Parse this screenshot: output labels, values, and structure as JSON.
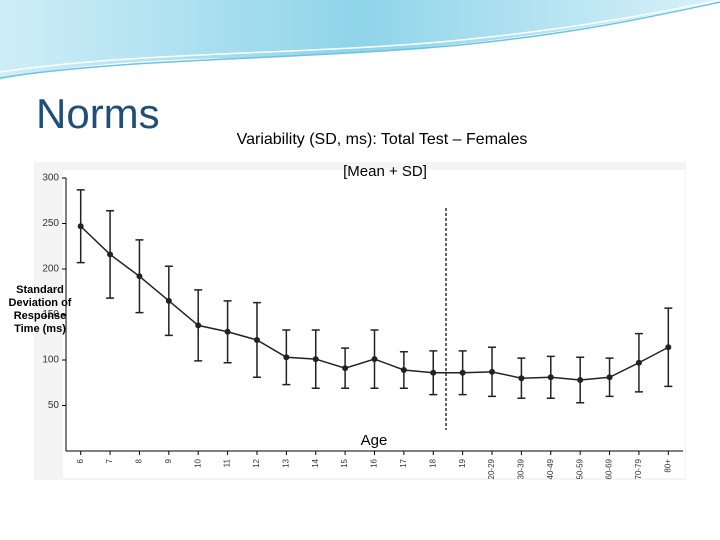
{
  "slide": {
    "title": "Norms"
  },
  "chart_data": {
    "type": "errorbar",
    "title": "Variability (SD, ms): Total Test – Females",
    "subtitle": "[Mean + SD]",
    "x_label": "Age",
    "y_label": "Standard Deviation of Response Time (ms)",
    "categories": [
      "6",
      "7",
      "8",
      "9",
      "10",
      "11",
      "12",
      "13",
      "14",
      "15",
      "16",
      "17",
      "18",
      "19",
      "20-29",
      "30-39",
      "40-49",
      "50-59",
      "60-69",
      "70-79",
      "80+"
    ],
    "series": [
      {
        "color": "#222222",
        "values": [
          247,
          216,
          192,
          165,
          138,
          131,
          122,
          103,
          101,
          91,
          101,
          89,
          86,
          86,
          87,
          80,
          81,
          78,
          81,
          97,
          114
        ],
        "errors": [
          40,
          48,
          40,
          38,
          39,
          34,
          41,
          30,
          32,
          22,
          32,
          20,
          24,
          24,
          27,
          22,
          23,
          25,
          21,
          32,
          43
        ]
      }
    ],
    "ylim": [
      0,
      300
    ],
    "yticks": [
      50,
      100,
      150,
      200,
      250,
      300
    ]
  }
}
